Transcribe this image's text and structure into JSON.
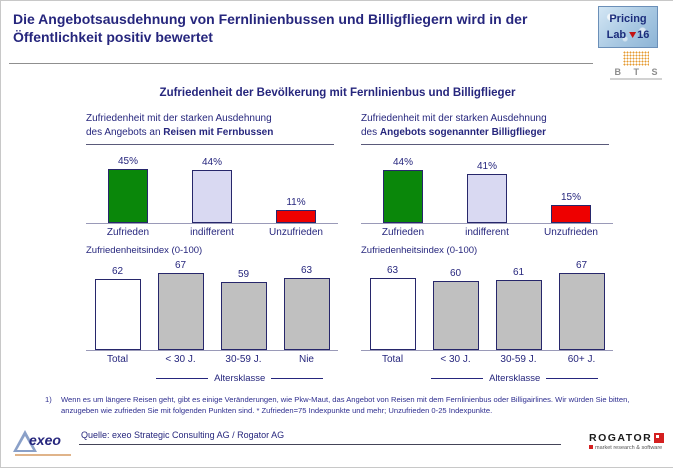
{
  "slide": {
    "title": "Die Angebotsausdehnung von Fernlinienbussen und Billigfliegern wird in der Öffentlichkeit positiv bewertet",
    "subtitle": "Zufriedenheit der Bevölkerung mit Fernlinienbus und Billigflieger"
  },
  "badge": {
    "line1": "Pricing",
    "line2_pre": "Lab",
    "line2_num": "16"
  },
  "theme": {
    "navy_text": "#26267d",
    "green_bar": "#0a870a",
    "lavender_bar": "#d9d9f2",
    "red_bar": "#ee0000",
    "gray_bar": "#c0c0c0",
    "white_bar": "#ffffff"
  },
  "panels": [
    {
      "header_line1": "Zufriedenheit mit der starken Ausdehnung",
      "header_lead": "des Angebots an ",
      "header_bold": "Reisen mit Fernbussen"
    },
    {
      "header_line1": "Zufriedenheit mit der starken Ausdehnung",
      "header_lead": "des ",
      "header_bold": "Angebots sogenannter Billigflieger"
    }
  ],
  "chart_data": [
    {
      "type": "bar",
      "title": "Zufriedenheit mit der starken Ausdehnung des Angebots an Reisen mit Fernbussen",
      "categories": [
        "Zufrieden",
        "indifferent",
        "Unzufrieden"
      ],
      "values": [
        45,
        44,
        11
      ],
      "value_suffix": "%",
      "colors": [
        "#0a870a",
        "#d9d9f2",
        "#ee0000"
      ],
      "ylim": [
        0,
        100
      ],
      "grid": false,
      "legend": "none"
    },
    {
      "type": "bar",
      "title": "Zufriedenheit mit der starken Ausdehnung des Angebots sogenannter Billigflieger",
      "categories": [
        "Zufrieden",
        "indifferent",
        "Unzufrieden"
      ],
      "values": [
        44,
        41,
        15
      ],
      "value_suffix": "%",
      "colors": [
        "#0a870a",
        "#d9d9f2",
        "#ee0000"
      ],
      "ylim": [
        0,
        100
      ],
      "grid": false,
      "legend": "none"
    },
    {
      "type": "bar",
      "title": "Zufriedenheitsindex  (0-100)",
      "categories": [
        "Total",
        "< 30 J.",
        "30-59 J.",
        "Nie"
      ],
      "values": [
        62,
        67,
        59,
        63
      ],
      "value_suffix": "",
      "colors": [
        "#ffffff",
        "#c0c0c0",
        "#c0c0c0",
        "#c0c0c0"
      ],
      "xlabel": "Altersklasse",
      "ylim": [
        0,
        100
      ],
      "grid": false,
      "legend": "none"
    },
    {
      "type": "bar",
      "title": "Zufriedenheitsindex  (0-100)",
      "categories": [
        "Total",
        "< 30 J.",
        "30-59 J.",
        "60+ J."
      ],
      "values": [
        63,
        60,
        61,
        67
      ],
      "value_suffix": "",
      "colors": [
        "#ffffff",
        "#c0c0c0",
        "#c0c0c0",
        "#c0c0c0"
      ],
      "xlabel": "Altersklasse",
      "ylim": [
        0,
        100
      ],
      "grid": false,
      "legend": "none"
    }
  ],
  "footnote": {
    "marker": "1)",
    "text": "Wenn es um längere Reisen geht, gibt es einige Veränderungen, wie Pkw-Maut, das Angebot von Reisen mit dem Fernlinienbus oder Billigairlines. Wir würden Sie bitten, anzugeben wie zufrieden Sie mit folgenden Punkten sind. * Zufrieden=75 Indexpunkte und mehr; Unzufrieden 0-25 Indexpunkte."
  },
  "source": "Quelle:  exeo Strategic Consulting AG / Rogator AG",
  "logos": {
    "bits": "B T S",
    "exeo": "exeo",
    "rogator": "ROGATOR",
    "rogator_sub": "market research & software"
  }
}
